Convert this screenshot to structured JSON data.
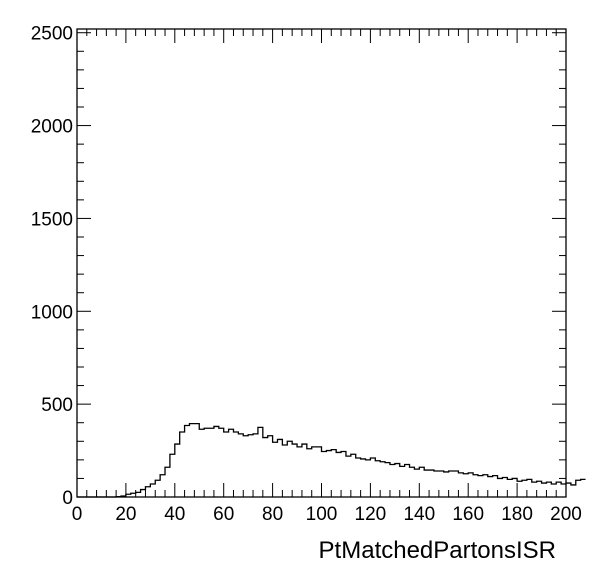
{
  "chart_data": {
    "type": "histogram",
    "xlabel": "PtMatchedPartonsISR",
    "ylabel": "",
    "xlim": [
      0,
      200
    ],
    "ylim": [
      0,
      2520
    ],
    "grid": false,
    "legend": "none",
    "x_ticks": [
      0,
      20,
      40,
      60,
      80,
      100,
      120,
      140,
      160,
      180,
      200
    ],
    "y_ticks": [
      0,
      500,
      1000,
      1500,
      2000,
      2500
    ],
    "bin_width": 2,
    "bin_edges_start": 0,
    "values": [
      0,
      0,
      0,
      0,
      0,
      0,
      0,
      0,
      2,
      5,
      15,
      20,
      25,
      40,
      55,
      70,
      90,
      120,
      160,
      230,
      285,
      350,
      385,
      395,
      395,
      365,
      370,
      370,
      380,
      370,
      350,
      365,
      350,
      340,
      330,
      335,
      340,
      375,
      320,
      330,
      295,
      310,
      280,
      300,
      285,
      270,
      285,
      260,
      270,
      270,
      245,
      250,
      255,
      240,
      245,
      220,
      230,
      210,
      205,
      200,
      210,
      195,
      190,
      185,
      175,
      180,
      165,
      175,
      160,
      150,
      160,
      145,
      145,
      140,
      140,
      135,
      140,
      140,
      130,
      125,
      130,
      120,
      115,
      120,
      110,
      115,
      100,
      105,
      95,
      100,
      85,
      90,
      95,
      80,
      85,
      75,
      80,
      70,
      80,
      70,
      75,
      65,
      90,
      95
    ]
  }
}
